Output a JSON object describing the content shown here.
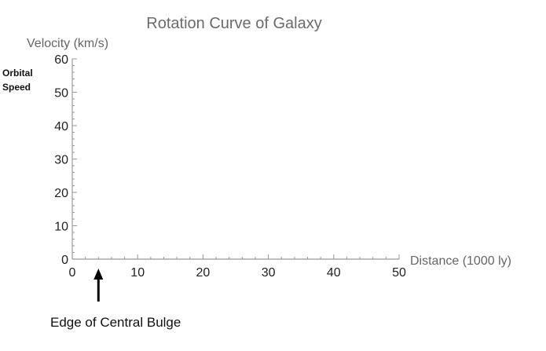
{
  "chart_data": {
    "type": "line",
    "title": "Rotation Curve of Galaxy",
    "xlabel": "Distance (1000 ly)",
    "ylabel": "Velocity (km/s)",
    "xlim": [
      0,
      50
    ],
    "ylim": [
      0,
      60
    ],
    "x_major_ticks": [
      0,
      10,
      20,
      30,
      40,
      50
    ],
    "y_major_ticks": [
      0,
      10,
      20,
      30,
      40,
      50,
      60
    ],
    "x_minor_step": 2,
    "y_minor_step": 2,
    "grid": false,
    "series": []
  },
  "annotations": {
    "side_label_line1": "Orbital",
    "side_label_line2": "Speed",
    "bulge_label": "Edge of Central Bulge",
    "bulge_x": 4
  },
  "colors": {
    "axis": "#999999",
    "title": "#6b6b6b",
    "arrow": "#000000"
  }
}
